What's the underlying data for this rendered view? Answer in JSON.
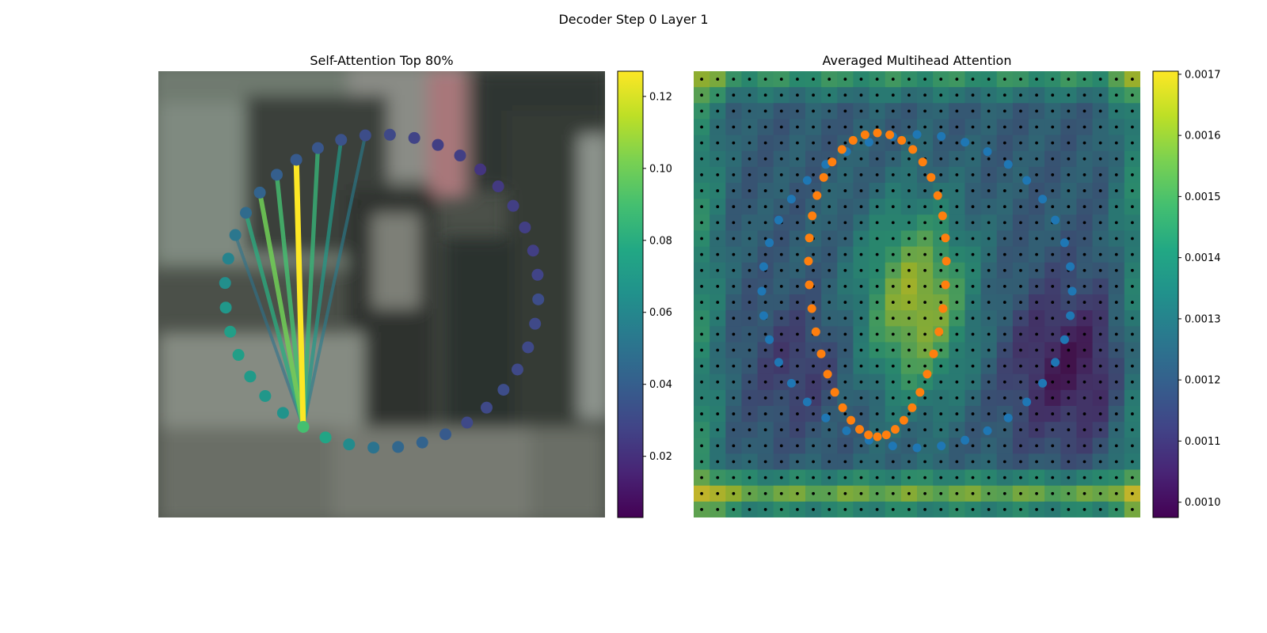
{
  "figure": {
    "suptitle": "Decoder Step 0 Layer 1"
  },
  "chart_data": [
    {
      "type": "scatter",
      "title": "Self-Attention Top 80%",
      "xlabel": "",
      "ylabel": "",
      "background": "blurred street-scene photograph with a pedestrian",
      "points_layout": "ring of 40 points",
      "point_weights": [
        0.09,
        0.076,
        0.062,
        0.05,
        0.044,
        0.042,
        0.038,
        0.03,
        0.03,
        0.032,
        0.03,
        0.03,
        0.03,
        0.032,
        0.028,
        0.026,
        0.026,
        0.026,
        0.024,
        0.022,
        0.026,
        0.026,
        0.028,
        0.03,
        0.032,
        0.034,
        0.036,
        0.038,
        0.04,
        0.042,
        0.046,
        0.052,
        0.058,
        0.064,
        0.068,
        0.072,
        0.072,
        0.07,
        0.068,
        0.066
      ],
      "query_point_index": 0,
      "attention_links": [
        {
          "to_index": 27,
          "weight": 0.127
        },
        {
          "to_index": 29,
          "weight": 0.1
        },
        {
          "to_index": 28,
          "weight": 0.09
        },
        {
          "to_index": 26,
          "weight": 0.085
        },
        {
          "to_index": 30,
          "weight": 0.08
        },
        {
          "to_index": 25,
          "weight": 0.07
        },
        {
          "to_index": 24,
          "weight": 0.055
        },
        {
          "to_index": 31,
          "weight": 0.05
        }
      ],
      "colorbar": {
        "colormap": "viridis",
        "range": [
          0.003,
          0.127
        ],
        "ticks": [
          "0.02",
          "0.04",
          "0.06",
          "0.08",
          "0.10",
          "0.12"
        ],
        "tick_values": [
          0.02,
          0.04,
          0.06,
          0.08,
          0.1,
          0.12
        ]
      }
    },
    {
      "type": "heatmap",
      "title": "Averaged Multihead Attention",
      "xlabel": "",
      "ylabel": "",
      "grid": {
        "cols": 28,
        "rows": 28
      },
      "overlays": [
        {
          "name": "blue ring",
          "color": "#1f77b4",
          "count": 40,
          "shape": "ring"
        },
        {
          "name": "orange ring",
          "color": "#ff7f0e",
          "count": 40,
          "shape": "inner vertical loop"
        },
        {
          "name": "reference dots",
          "color": "#000000",
          "shape": "28x28 grid"
        }
      ],
      "colorbar": {
        "colormap": "viridis",
        "range": [
          0.000975,
          0.001705
        ],
        "ticks": [
          "0.0010",
          "0.0011",
          "0.0012",
          "0.0013",
          "0.0014",
          "0.0015",
          "0.0016",
          "0.0017"
        ],
        "tick_values": [
          0.001,
          0.0011,
          0.0012,
          0.0013,
          0.0014,
          0.0015,
          0.0016,
          0.0017
        ]
      }
    }
  ]
}
